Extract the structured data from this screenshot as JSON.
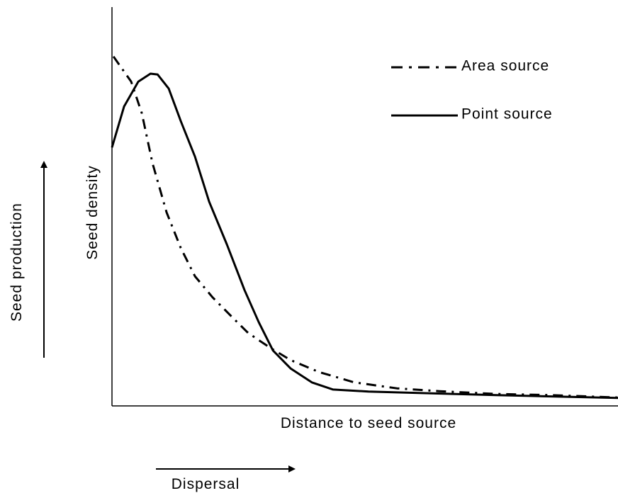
{
  "chart_data": {
    "type": "line",
    "ylabel": "Seed density",
    "xlabel": "Distance to seed source",
    "annotations": [
      "Seed production",
      "Dispersal"
    ],
    "xlim": [
      0,
      100
    ],
    "ylim": [
      0,
      100
    ],
    "series": [
      {
        "name": "Area source",
        "color": "#000000",
        "linestyle": "dashdot",
        "x": [
          0.3,
          3.8,
          5.9,
          8.0,
          10.8,
          13.6,
          16.4,
          19.9,
          23.4,
          26.9,
          31.1,
          35.3,
          40.9,
          47.9,
          56.3,
          64.7,
          75.9,
          87.1,
          100
        ],
        "values": [
          87.6,
          81.3,
          73.4,
          60.9,
          48.5,
          39.6,
          32.5,
          27.2,
          22.7,
          18.3,
          14.7,
          11.5,
          8.5,
          5.9,
          4.4,
          3.7,
          3.0,
          2.7,
          2.1
        ]
      },
      {
        "name": "Point source",
        "color": "#000000",
        "linestyle": "solid",
        "x": [
          0,
          2.4,
          5.2,
          7.6,
          9.0,
          11.2,
          13.6,
          16.4,
          19.2,
          22.7,
          26.2,
          29.0,
          31.8,
          35.3,
          39.5,
          43.7,
          50.7,
          61.9,
          75.9,
          89.9,
          100
        ],
        "values": [
          64.8,
          75.1,
          81.3,
          83.3,
          83.1,
          79.6,
          71.4,
          62.5,
          51.2,
          40.5,
          29.0,
          21.0,
          13.9,
          9.4,
          5.9,
          4.1,
          3.6,
          3.2,
          2.7,
          2.3,
          2.0
        ]
      }
    ]
  }
}
